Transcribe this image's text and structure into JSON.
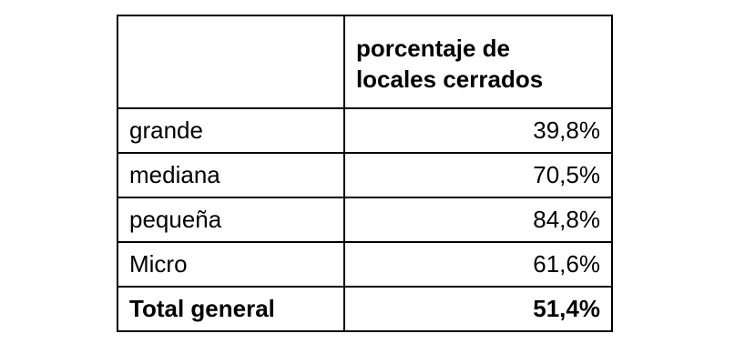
{
  "table": {
    "column_header": "porcentaje de locales cerrados",
    "rows": [
      [
        "grande",
        "39,8%"
      ],
      [
        "mediana",
        "70,5%"
      ],
      [
        "pequeña",
        "84,8%"
      ],
      [
        "Micro",
        "61,6%"
      ]
    ],
    "total": [
      "Total general",
      "51,4%"
    ]
  }
}
